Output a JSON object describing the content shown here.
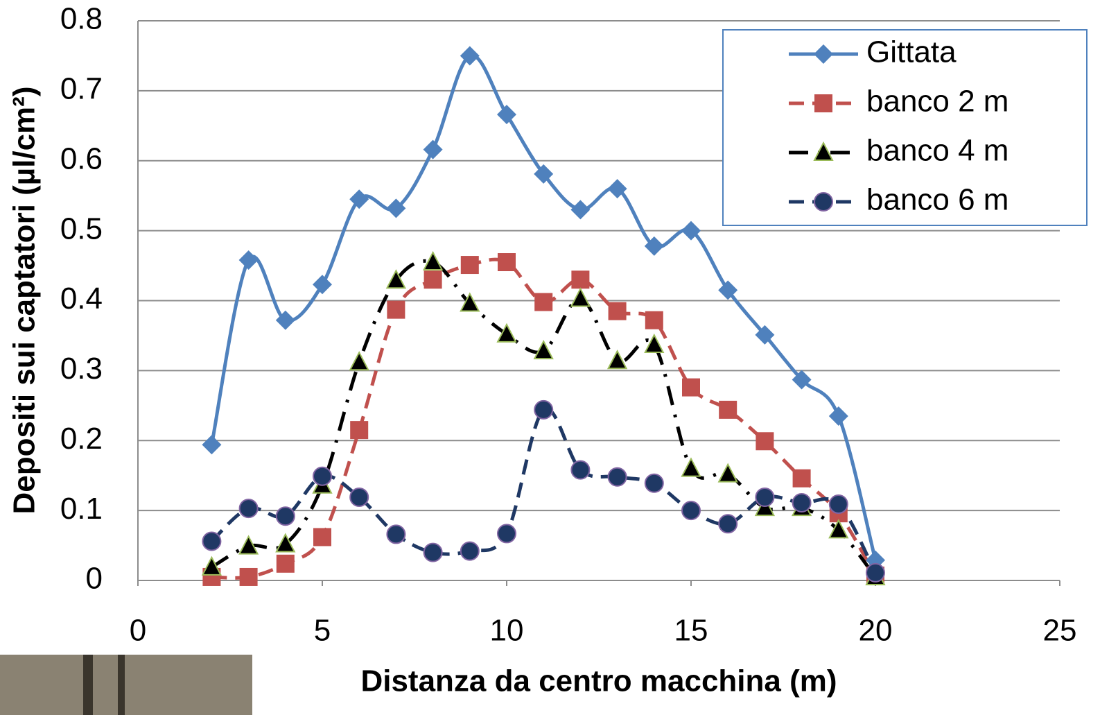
{
  "chart_data": {
    "type": "line",
    "x_label": "Distanza da centro macchina (m)",
    "y_label": "Depositi sui captatori (µl/cm²)",
    "x": [
      2,
      3,
      4,
      5,
      6,
      7,
      8,
      9,
      10,
      11,
      12,
      13,
      14,
      15,
      16,
      17,
      18,
      19,
      20
    ],
    "series": [
      {
        "name": "Gittata",
        "color": "#4f81bd",
        "line_style": "solid",
        "marker": "diamond",
        "values": [
          0.194,
          0.458,
          0.372,
          0.423,
          0.545,
          0.532,
          0.616,
          0.75,
          0.666,
          0.581,
          0.53,
          0.56,
          0.478,
          0.5,
          0.415,
          0.351,
          0.287,
          0.235,
          0.029
        ]
      },
      {
        "name": "banco 2 m",
        "color": "#c0504d",
        "line_style": "dashed",
        "marker": "square",
        "values": [
          0.005,
          0.005,
          0.024,
          0.062,
          0.215,
          0.387,
          0.43,
          0.451,
          0.455,
          0.398,
          0.43,
          0.385,
          0.372,
          0.276,
          0.244,
          0.199,
          0.146,
          0.096,
          0.007
        ]
      },
      {
        "name": "banco 4 m",
        "color": "#000000",
        "line_style": "dashdot",
        "marker": "triangle",
        "values": [
          0.019,
          0.049,
          0.052,
          0.136,
          0.312,
          0.429,
          0.455,
          0.396,
          0.352,
          0.328,
          0.403,
          0.314,
          0.337,
          0.16,
          0.152,
          0.104,
          0.104,
          0.072,
          0.005
        ]
      },
      {
        "name": "banco 6 m",
        "color": "#1f3864",
        "line_style": "dashed",
        "marker": "circle",
        "values": [
          0.056,
          0.103,
          0.092,
          0.149,
          0.119,
          0.066,
          0.04,
          0.042,
          0.067,
          0.244,
          0.158,
          0.148,
          0.139,
          0.1,
          0.081,
          0.119,
          0.111,
          0.109,
          0.011
        ]
      }
    ],
    "xlim": [
      0,
      25
    ],
    "xticks": [
      0,
      5,
      10,
      15,
      20,
      25
    ],
    "ylim": [
      0,
      0.8
    ],
    "yticks": [
      0,
      0.1,
      0.2,
      0.3,
      0.4,
      0.5,
      0.6,
      0.7,
      0.8
    ],
    "grid": true,
    "smooth": true,
    "legend": "top-right"
  }
}
